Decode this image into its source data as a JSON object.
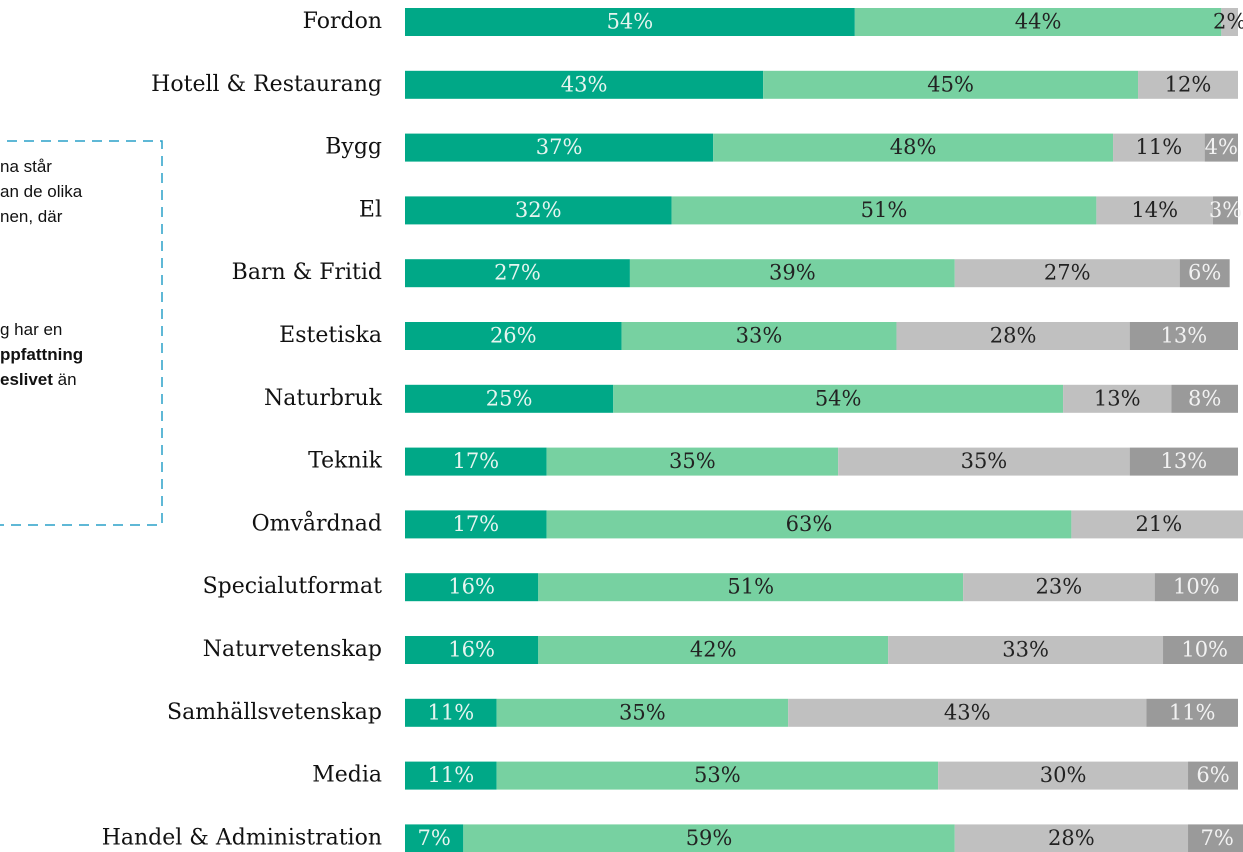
{
  "chart_data": {
    "type": "stacked-bar-horizontal",
    "categories": [
      "Fordon",
      "Hotell & Restaurang",
      "Bygg",
      "El",
      "Barn & Fritid",
      "Estetiska",
      "Naturbruk",
      "Teknik",
      "Omvårdnad",
      "Specialutformat",
      "Naturvetenskap",
      "Samhällsvetenskap",
      "Media",
      "Handel & Administration"
    ],
    "xlim": [
      0,
      100
    ],
    "series": [
      {
        "color": "#00a887",
        "label_color": "#e6f5f0",
        "values": [
          54,
          43,
          37,
          32,
          27,
          26,
          25,
          17,
          17,
          16,
          16,
          11,
          11,
          7
        ],
        "value_labels": [
          "54%",
          "43%",
          "37%",
          "32%",
          "27%",
          "26%",
          "25%",
          "17%",
          "17%",
          "16%",
          "16%",
          "11%",
          "11%",
          "7%"
        ]
      },
      {
        "color": "#77d1a1",
        "label_color": "#222222",
        "values": [
          44,
          45,
          48,
          51,
          39,
          33,
          54,
          35,
          63,
          51,
          42,
          35,
          53,
          59
        ],
        "value_labels": [
          "44%",
          "45%",
          "48%",
          "51%",
          "39%",
          "33%",
          "54%",
          "35%",
          "63%",
          "51%",
          "42%",
          "35%",
          "53%",
          "59%"
        ]
      },
      {
        "color": "#c0c0c0",
        "label_color": "#222222",
        "values": [
          2,
          12,
          11,
          14,
          27,
          28,
          13,
          35,
          21,
          23,
          33,
          43,
          30,
          28
        ],
        "value_labels": [
          "2%",
          "12%",
          "11%",
          "14%",
          "27%",
          "28%",
          "13%",
          "35%",
          "21%",
          "23%",
          "33%",
          "43%",
          "30%",
          "28%"
        ]
      },
      {
        "color": "#9a9a9a",
        "label_color": "#f2f2f2",
        "values": [
          null,
          null,
          4,
          3,
          6,
          13,
          8,
          13,
          null,
          10,
          10,
          11,
          6,
          7
        ],
        "value_labels": [
          null,
          null,
          "4%",
          "3%",
          "6%",
          "13%",
          "8%",
          "13%",
          null,
          "10%",
          "10%",
          "11%",
          "6%",
          "7%"
        ]
      }
    ],
    "annotation": {
      "lines": [
        [
          {
            "text": "na står",
            "bold": false
          }
        ],
        [
          {
            "text": "an de olika",
            "bold": false
          }
        ],
        [
          {
            "text": "nen, där",
            "bold": false
          }
        ],
        [
          {
            "text": "g har en",
            "bold": false
          }
        ],
        [
          {
            "text": "ppfattning",
            "bold": true
          }
        ],
        [
          {
            "text": "eslivet",
            "bold": true
          },
          {
            "text": " än",
            "bold": false
          }
        ]
      ]
    }
  }
}
